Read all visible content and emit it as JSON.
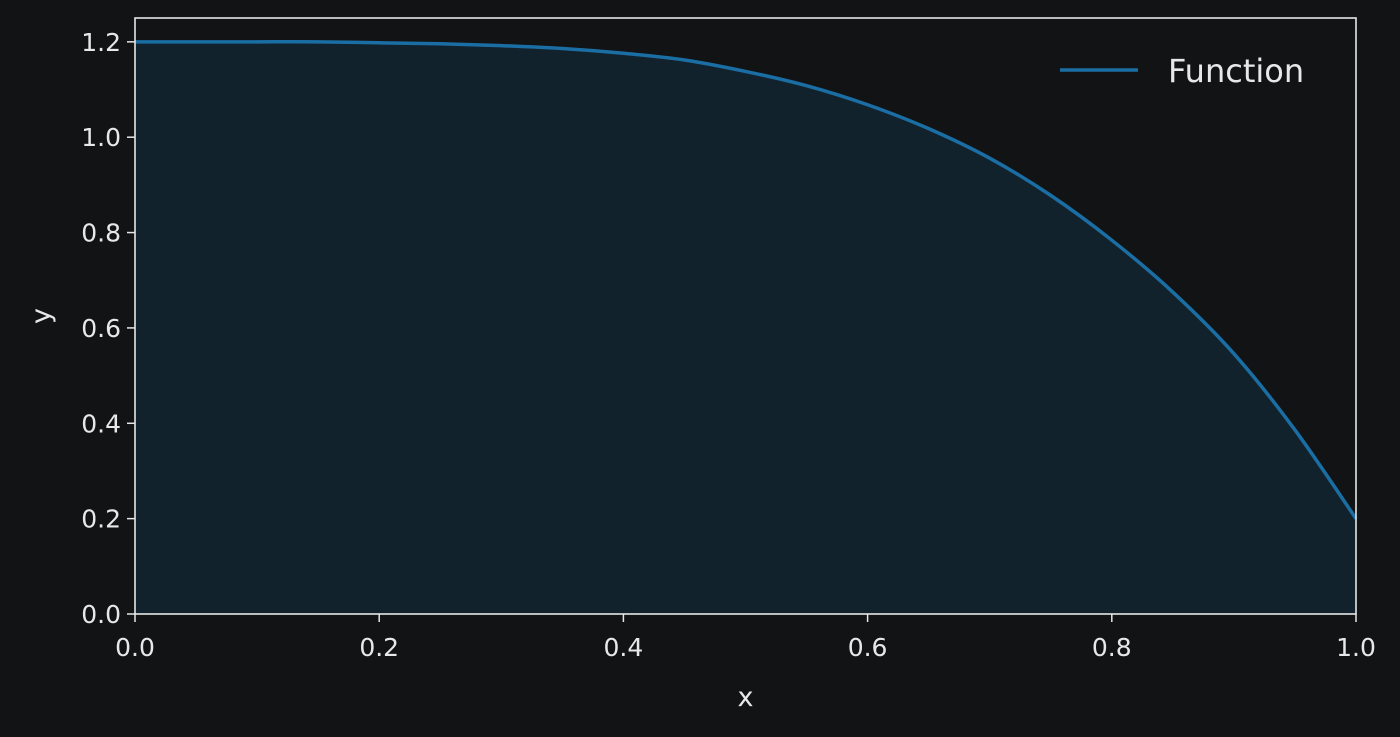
{
  "chart_data": {
    "type": "area",
    "title": "",
    "xlabel": "x",
    "ylabel": "y",
    "xlim": [
      0.0,
      1.0
    ],
    "ylim": [
      0.0,
      1.25
    ],
    "x_ticks": [
      "0.0",
      "0.2",
      "0.4",
      "0.6",
      "0.8",
      "1.0"
    ],
    "y_ticks": [
      "0.0",
      "0.2",
      "0.4",
      "0.6",
      "0.8",
      "1.0",
      "1.2"
    ],
    "grid": false,
    "legend_position": "top-right",
    "series": [
      {
        "name": "Function",
        "color": "#1a6ea4",
        "fill_color": "#12222d",
        "x": [
          0.0,
          0.05,
          0.1,
          0.15,
          0.2,
          0.25,
          0.3,
          0.35,
          0.4,
          0.45,
          0.5,
          0.55,
          0.6,
          0.65,
          0.7,
          0.75,
          0.8,
          0.85,
          0.9,
          0.95,
          1.0
        ],
        "y": [
          1.2,
          1.2,
          1.2,
          1.2,
          1.198,
          1.196,
          1.192,
          1.186,
          1.176,
          1.162,
          1.138,
          1.108,
          1.068,
          1.018,
          0.956,
          0.878,
          0.784,
          0.675,
          0.546,
          0.386,
          0.2
        ]
      }
    ]
  },
  "colors": {
    "background": "#111315",
    "axis": "#e6e6e6",
    "text": "#e8e8e8"
  }
}
